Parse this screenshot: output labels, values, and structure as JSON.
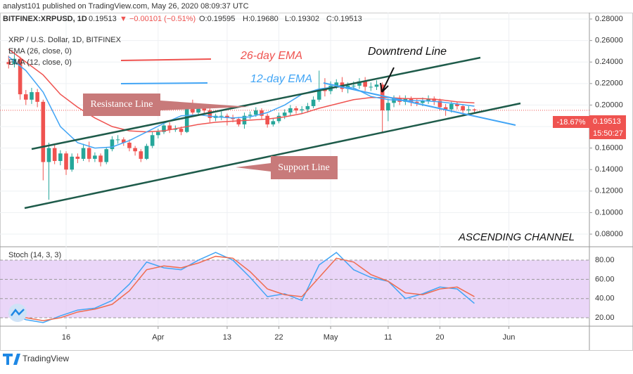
{
  "header": {
    "published": "analyst101 published on TradingView.com, May 26, 2020 08:09:37 UTC",
    "symbol": "BITFINEX:XRPUSD, 1D",
    "last": "0.19513",
    "change": "▼ −0.00101 (−0.51%)",
    "open": "O:0.19595",
    "high": "H:0.19680",
    "low": "L:0.19302",
    "close": "C:0.19513"
  },
  "legend": {
    "main": "XRP / U.S. Dollar, 1D, BITFINEX",
    "ema26": "EMA (26, close, 0)",
    "ema12": "EMA (12, close, 0)",
    "stoch": "Stoch (14, 3, 3)"
  },
  "annotations": {
    "ema26": "26-day EMA",
    "ema12": "12-day EMA",
    "downtrend": "Downtrend  Line",
    "resistance": "Resistance Line",
    "support": "Support Line",
    "channel": "ASCENDING CHANNEL"
  },
  "price_tag": {
    "percent": "-18.67%",
    "price": "0.19513",
    "countdown": "15:50:27"
  },
  "footer": {
    "brand": "TradingView"
  },
  "chart_data": [
    {
      "type": "candlestick",
      "up_color": "#26a69a",
      "down_color": "#ef5350",
      "x": [
        66,
        67,
        68,
        69,
        70,
        71,
        72,
        73,
        74,
        75,
        76,
        77,
        78,
        79,
        80,
        81,
        82,
        83,
        84,
        85,
        86,
        87,
        88,
        89,
        90,
        91,
        92,
        93,
        94,
        95,
        96,
        97,
        98,
        99,
        100,
        101,
        102,
        103,
        104,
        105,
        106,
        107,
        108,
        109,
        110,
        111,
        112,
        113,
        114,
        115,
        116,
        117,
        118,
        119,
        120,
        121,
        122,
        123,
        124,
        125,
        126,
        127,
        128,
        129,
        130,
        131,
        132,
        133,
        134,
        135,
        136,
        137,
        138,
        139,
        140,
        141,
        142,
        143,
        144,
        145,
        146,
        147
      ],
      "open": [
        0.24,
        0.238,
        0.243,
        0.21,
        0.205,
        0.212,
        0.203,
        0.147,
        0.16,
        0.148,
        0.155,
        0.14,
        0.152,
        0.15,
        0.16,
        0.15,
        0.153,
        0.147,
        0.159,
        0.168,
        0.168,
        0.165,
        0.16,
        0.157,
        0.15,
        0.162,
        0.172,
        0.175,
        0.181,
        0.177,
        0.178,
        0.175,
        0.198,
        0.193,
        0.198,
        0.195,
        0.188,
        0.19,
        0.19,
        0.188,
        0.187,
        0.182,
        0.19,
        0.191,
        0.195,
        0.19,
        0.182,
        0.185,
        0.19,
        0.193,
        0.197,
        0.195,
        0.196,
        0.199,
        0.205,
        0.215,
        0.213,
        0.218,
        0.221,
        0.215,
        0.218,
        0.218,
        0.222,
        0.217,
        0.217,
        0.219,
        0.195,
        0.202,
        0.206,
        0.203,
        0.206,
        0.203,
        0.202,
        0.204,
        0.206,
        0.204,
        0.198,
        0.196,
        0.201,
        0.199,
        0.195,
        0.19595
      ],
      "high": [
        0.246,
        0.248,
        0.245,
        0.214,
        0.216,
        0.215,
        0.205,
        0.165,
        0.163,
        0.158,
        0.157,
        0.155,
        0.155,
        0.164,
        0.166,
        0.156,
        0.155,
        0.161,
        0.171,
        0.172,
        0.17,
        0.168,
        0.162,
        0.159,
        0.164,
        0.175,
        0.178,
        0.184,
        0.184,
        0.181,
        0.18,
        0.201,
        0.205,
        0.2,
        0.2,
        0.197,
        0.192,
        0.194,
        0.192,
        0.191,
        0.189,
        0.193,
        0.194,
        0.198,
        0.197,
        0.192,
        0.188,
        0.193,
        0.196,
        0.2,
        0.199,
        0.199,
        0.202,
        0.208,
        0.232,
        0.225,
        0.222,
        0.224,
        0.226,
        0.221,
        0.222,
        0.225,
        0.226,
        0.221,
        0.223,
        0.221,
        0.206,
        0.209,
        0.209,
        0.209,
        0.208,
        0.206,
        0.207,
        0.209,
        0.208,
        0.206,
        0.201,
        0.203,
        0.203,
        0.201,
        0.199,
        0.1968
      ],
      "low": [
        0.234,
        0.235,
        0.205,
        0.2,
        0.201,
        0.198,
        0.13,
        0.112,
        0.145,
        0.144,
        0.135,
        0.138,
        0.146,
        0.148,
        0.147,
        0.147,
        0.143,
        0.145,
        0.157,
        0.164,
        0.162,
        0.157,
        0.153,
        0.147,
        0.149,
        0.16,
        0.169,
        0.173,
        0.174,
        0.175,
        0.172,
        0.174,
        0.19,
        0.19,
        0.192,
        0.184,
        0.185,
        0.186,
        0.181,
        0.184,
        0.18,
        0.178,
        0.187,
        0.189,
        0.187,
        0.179,
        0.18,
        0.183,
        0.187,
        0.19,
        0.192,
        0.192,
        0.193,
        0.197,
        0.203,
        0.208,
        0.21,
        0.215,
        0.212,
        0.211,
        0.214,
        0.215,
        0.213,
        0.213,
        0.214,
        0.175,
        0.185,
        0.198,
        0.2,
        0.2,
        0.199,
        0.199,
        0.199,
        0.201,
        0.2,
        0.195,
        0.19,
        0.193,
        0.196,
        0.19,
        0.192,
        0.19302
      ],
      "close": [
        0.238,
        0.243,
        0.21,
        0.205,
        0.212,
        0.203,
        0.147,
        0.16,
        0.148,
        0.155,
        0.14,
        0.152,
        0.15,
        0.16,
        0.15,
        0.153,
        0.147,
        0.159,
        0.168,
        0.168,
        0.165,
        0.16,
        0.157,
        0.15,
        0.162,
        0.172,
        0.175,
        0.181,
        0.177,
        0.178,
        0.175,
        0.198,
        0.193,
        0.198,
        0.195,
        0.188,
        0.19,
        0.19,
        0.188,
        0.187,
        0.182,
        0.19,
        0.191,
        0.195,
        0.19,
        0.182,
        0.185,
        0.19,
        0.193,
        0.197,
        0.195,
        0.196,
        0.199,
        0.205,
        0.215,
        0.213,
        0.218,
        0.221,
        0.215,
        0.218,
        0.218,
        0.222,
        0.217,
        0.217,
        0.219,
        0.195,
        0.202,
        0.206,
        0.203,
        0.206,
        0.203,
        0.202,
        0.204,
        0.206,
        0.204,
        0.198,
        0.196,
        0.201,
        0.199,
        0.195,
        0.19595,
        0.19513
      ],
      "lines": [
        {
          "name": "EMA (26, close, 0)",
          "color": "#ef5350",
          "x": [
            66,
            69,
            72,
            75,
            78,
            81,
            84,
            87,
            90,
            93,
            96,
            99,
            102,
            105,
            108,
            111,
            114,
            117,
            120,
            123,
            126,
            129,
            132,
            135,
            138,
            141,
            144,
            147
          ],
          "values": [
            0.252,
            0.24,
            0.228,
            0.21,
            0.198,
            0.188,
            0.18,
            0.176,
            0.175,
            0.176,
            0.179,
            0.182,
            0.184,
            0.185,
            0.186,
            0.187,
            0.189,
            0.192,
            0.197,
            0.201,
            0.205,
            0.207,
            0.207,
            0.206,
            0.206,
            0.205,
            0.203,
            0.202
          ]
        },
        {
          "name": "EMA (12, close, 0)",
          "color": "#42a5f5",
          "x": [
            66,
            69,
            72,
            75,
            78,
            81,
            84,
            87,
            90,
            93,
            96,
            99,
            102,
            105,
            108,
            111,
            114,
            117,
            120,
            123,
            126,
            129,
            132,
            135,
            138,
            141,
            144,
            147
          ],
          "values": [
            0.245,
            0.232,
            0.212,
            0.18,
            0.165,
            0.16,
            0.161,
            0.167,
            0.175,
            0.183,
            0.19,
            0.191,
            0.189,
            0.188,
            0.189,
            0.193,
            0.2,
            0.21,
            0.215,
            0.217,
            0.216,
            0.208,
            0.205,
            0.204,
            0.204,
            0.203,
            0.201,
            0.199
          ]
        }
      ],
      "last_line_color": "#ef5350",
      "xlim": [
        64.5,
        167
      ],
      "ylim": [
        0.0689,
        0.2859
      ],
      "yticks": [
        {
          "value": 0.28,
          "label": "0.28000"
        },
        {
          "value": 0.26,
          "label": "0.26000"
        },
        {
          "value": 0.24,
          "label": "0.24000"
        },
        {
          "value": 0.22,
          "label": "0.22000"
        },
        {
          "value": 0.2,
          "label": "0.20000"
        },
        {
          "value": 0.18,
          "label": "0.18000"
        },
        {
          "value": 0.16,
          "label": "0.16000"
        },
        {
          "value": 0.14,
          "label": "0.14000"
        },
        {
          "value": 0.12,
          "label": "0.12000"
        },
        {
          "value": 0.1,
          "label": "0.10000"
        },
        {
          "value": 0.08,
          "label": "0.08000"
        }
      ],
      "xticks": [
        {
          "value": 76,
          "label": "16"
        },
        {
          "value": 92,
          "label": "Apr"
        },
        {
          "value": 104,
          "label": "13"
        },
        {
          "value": 113,
          "label": "22"
        },
        {
          "value": 122,
          "label": "May"
        },
        {
          "value": 132,
          "label": "11"
        },
        {
          "value": 141,
          "label": "20"
        },
        {
          "value": 153,
          "label": "Jun"
        }
      ]
    },
    {
      "type": "line",
      "band_color": "#e3c8f5",
      "band": [
        20,
        80
      ],
      "series": [
        {
          "name": "%K",
          "color": "#42a5f5",
          "x": [
            66,
            69,
            72,
            75,
            78,
            81,
            84,
            87,
            90,
            93,
            96,
            99,
            102,
            105,
            108,
            111,
            114,
            117,
            120,
            123,
            126,
            129,
            132,
            135,
            138,
            141,
            144,
            147
          ],
          "values": [
            25,
            18,
            15,
            22,
            28,
            30,
            38,
            55,
            78,
            72,
            70,
            80,
            88,
            80,
            62,
            42,
            45,
            38,
            75,
            88,
            70,
            62,
            58,
            40,
            45,
            52,
            50,
            35
          ]
        },
        {
          "name": "%D",
          "color": "#ef6c50",
          "x": [
            66,
            69,
            72,
            75,
            78,
            81,
            84,
            87,
            90,
            93,
            96,
            99,
            102,
            105,
            108,
            111,
            114,
            117,
            120,
            123,
            126,
            129,
            132,
            135,
            138,
            141,
            144,
            147
          ],
          "values": [
            24,
            20,
            17,
            20,
            26,
            29,
            34,
            48,
            70,
            74,
            72,
            77,
            84,
            82,
            68,
            50,
            44,
            42,
            62,
            82,
            78,
            65,
            58,
            46,
            44,
            50,
            52,
            42
          ]
        }
      ],
      "xlim": [
        64.5,
        167
      ],
      "ylim": [
        12.7,
        93.2
      ],
      "yticks": [
        {
          "value": 80,
          "label": "80.00"
        },
        {
          "value": 60,
          "label": "60.00"
        },
        {
          "value": 40,
          "label": "40.00"
        },
        {
          "value": 20,
          "label": "20.00"
        }
      ]
    }
  ]
}
